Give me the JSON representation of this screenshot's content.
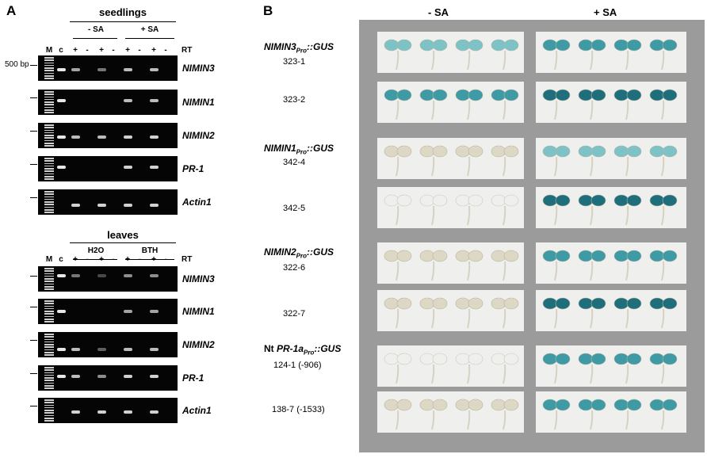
{
  "panelA": {
    "letter": "A",
    "seedlings": {
      "title": "seedlings",
      "cond1": "- SA",
      "cond2": "+ SA",
      "lanes": [
        "M",
        "c",
        "+",
        "-",
        "+",
        "-",
        "+",
        "-",
        "+",
        "-"
      ],
      "rt": "RT",
      "size_marker": "500 bp",
      "genes": [
        "NIMIN3",
        "NIMIN1",
        "NIMIN2",
        "PR-1",
        "Actin1"
      ]
    },
    "leaves": {
      "title": "leaves",
      "cond1": "H2O",
      "cond2": "BTH",
      "lanes": [
        "M",
        "c",
        "+",
        "-",
        "+",
        "-",
        "+",
        "-",
        "+",
        "-"
      ],
      "rt": "RT",
      "genes": [
        "NIMIN3",
        "NIMIN1",
        "NIMIN2",
        "PR-1",
        "Actin1"
      ]
    }
  },
  "panelB": {
    "letter": "B",
    "col_minus": "- SA",
    "col_plus": "+ SA",
    "constructs": [
      {
        "name": "NIMIN3",
        "sub": "Pro",
        "suffix": "::GUS",
        "prefix": ""
      },
      {
        "name": "NIMIN1",
        "sub": "Pro",
        "suffix": "::GUS",
        "prefix": ""
      },
      {
        "name": "NIMIN2",
        "sub": "Pro",
        "suffix": "::GUS",
        "prefix": ""
      },
      {
        "name": "PR-1a",
        "sub": "Pro",
        "suffix": "::GUS",
        "prefix": "Nt "
      }
    ],
    "lines": [
      "323-1",
      "323-2",
      "342-4",
      "342-5",
      "322-6",
      "322-7",
      "124-1 (-906)",
      "138-7 (-1533)"
    ],
    "colors": {
      "photo_bg": "#efefee",
      "stain_strong": "#1f6e7c",
      "stain_medium": "#3e9aa5",
      "stain_light": "#7cc2c6",
      "unstained": "#ddd8c4",
      "panel_gray": "#9b9b9b"
    }
  }
}
